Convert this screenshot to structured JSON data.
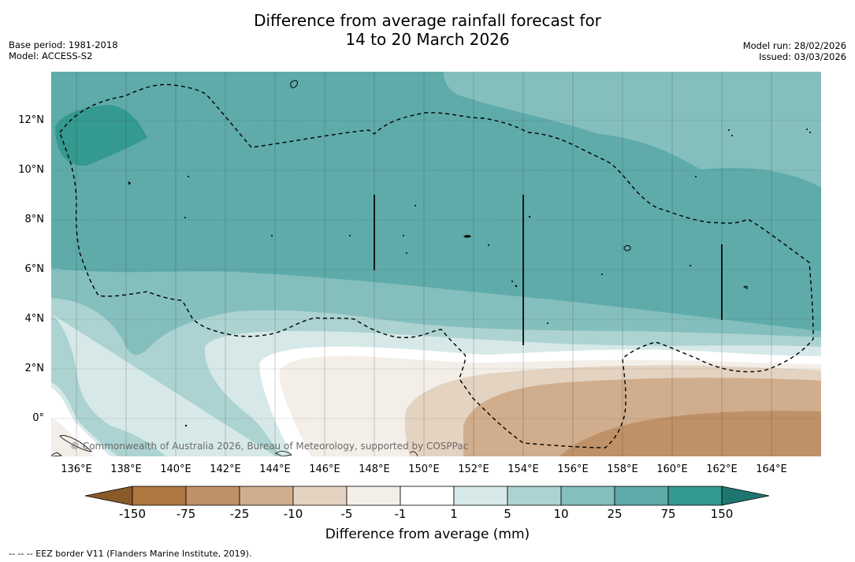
{
  "title": {
    "line1": "Difference from average rainfall forecast for",
    "line2": "14 to 20 March 2026"
  },
  "meta": {
    "base_period": "Base period: 1981-2018",
    "model": "Model: ACCESS-S2",
    "model_run": "Model run: 28/02/2026",
    "issued": "Issued: 03/03/2026"
  },
  "credit": "© Commonwealth of Australia 2026, Bureau of Meteorology, supported by COSPPac",
  "map": {
    "lat_ticks": [
      "12°N",
      "10°N",
      "8°N",
      "6°N",
      "4°N",
      "2°N",
      "0°"
    ],
    "lon_ticks": [
      "136°E",
      "138°E",
      "140°E",
      "142°E",
      "144°E",
      "146°E",
      "148°E",
      "150°E",
      "152°E",
      "154°E",
      "156°E",
      "158°E",
      "160°E",
      "162°E",
      "164°E"
    ]
  },
  "colorbar": {
    "title": "Difference from average (mm)",
    "labels": [
      "-150",
      "-75",
      "-25",
      "-10",
      "-5",
      "-1",
      "1",
      "5",
      "10",
      "25",
      "75",
      "150"
    ],
    "colors": [
      "#8a5a2b",
      "#ae773f",
      "#bf9168",
      "#d0ad8c",
      "#e4d3c1",
      "#f3eee8",
      "#ffffff",
      "#d6e9e8",
      "#acd3d1",
      "#84bfbd",
      "#5eabaa",
      "#34998f",
      "#1f7670"
    ]
  },
  "footnote": "--  --  -- EEZ border V11 (Flanders Marine Institute, 2019)."
}
